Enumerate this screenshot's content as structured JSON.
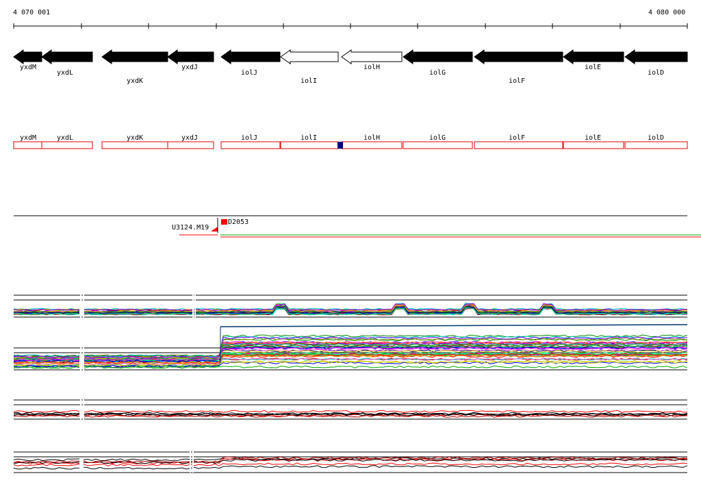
{
  "ruler": {
    "start_label": "4 070 001",
    "end_label": "4 080 000"
  },
  "colors": {
    "gene_forward": "#000000",
    "gene_reverse_fill": "#ffffff",
    "cds_box": "#dd0000",
    "marker": "#000080",
    "probe_red": "#ff0000",
    "probe_green": "#00aa00"
  },
  "genes": [
    {
      "name": "yxdM",
      "strand": "-",
      "filled": true
    },
    {
      "name": "yxdL",
      "strand": "-",
      "filled": true
    },
    {
      "name": "yxdK",
      "strand": "-",
      "filled": true
    },
    {
      "name": "yxdJ",
      "strand": "-",
      "filled": true
    },
    {
      "name": "iolJ",
      "strand": "-",
      "filled": true
    },
    {
      "name": "iolI",
      "strand": "-",
      "filled": false
    },
    {
      "name": "iolH",
      "strand": "-",
      "filled": false
    },
    {
      "name": "iolG",
      "strand": "-",
      "filled": true
    },
    {
      "name": "iolF",
      "strand": "-",
      "filled": true
    },
    {
      "name": "iolE",
      "strand": "-",
      "filled": true
    },
    {
      "name": "iolD",
      "strand": "-",
      "filled": true
    }
  ],
  "cds_labels": [
    "yxdM",
    "yxdL",
    "yxdK",
    "yxdJ",
    "iolJ",
    "iolI",
    "iolH",
    "iolG",
    "iolF",
    "iolE",
    "iolD"
  ],
  "probes": {
    "left_label": "U3124.M19",
    "right_label": "D2053"
  }
}
